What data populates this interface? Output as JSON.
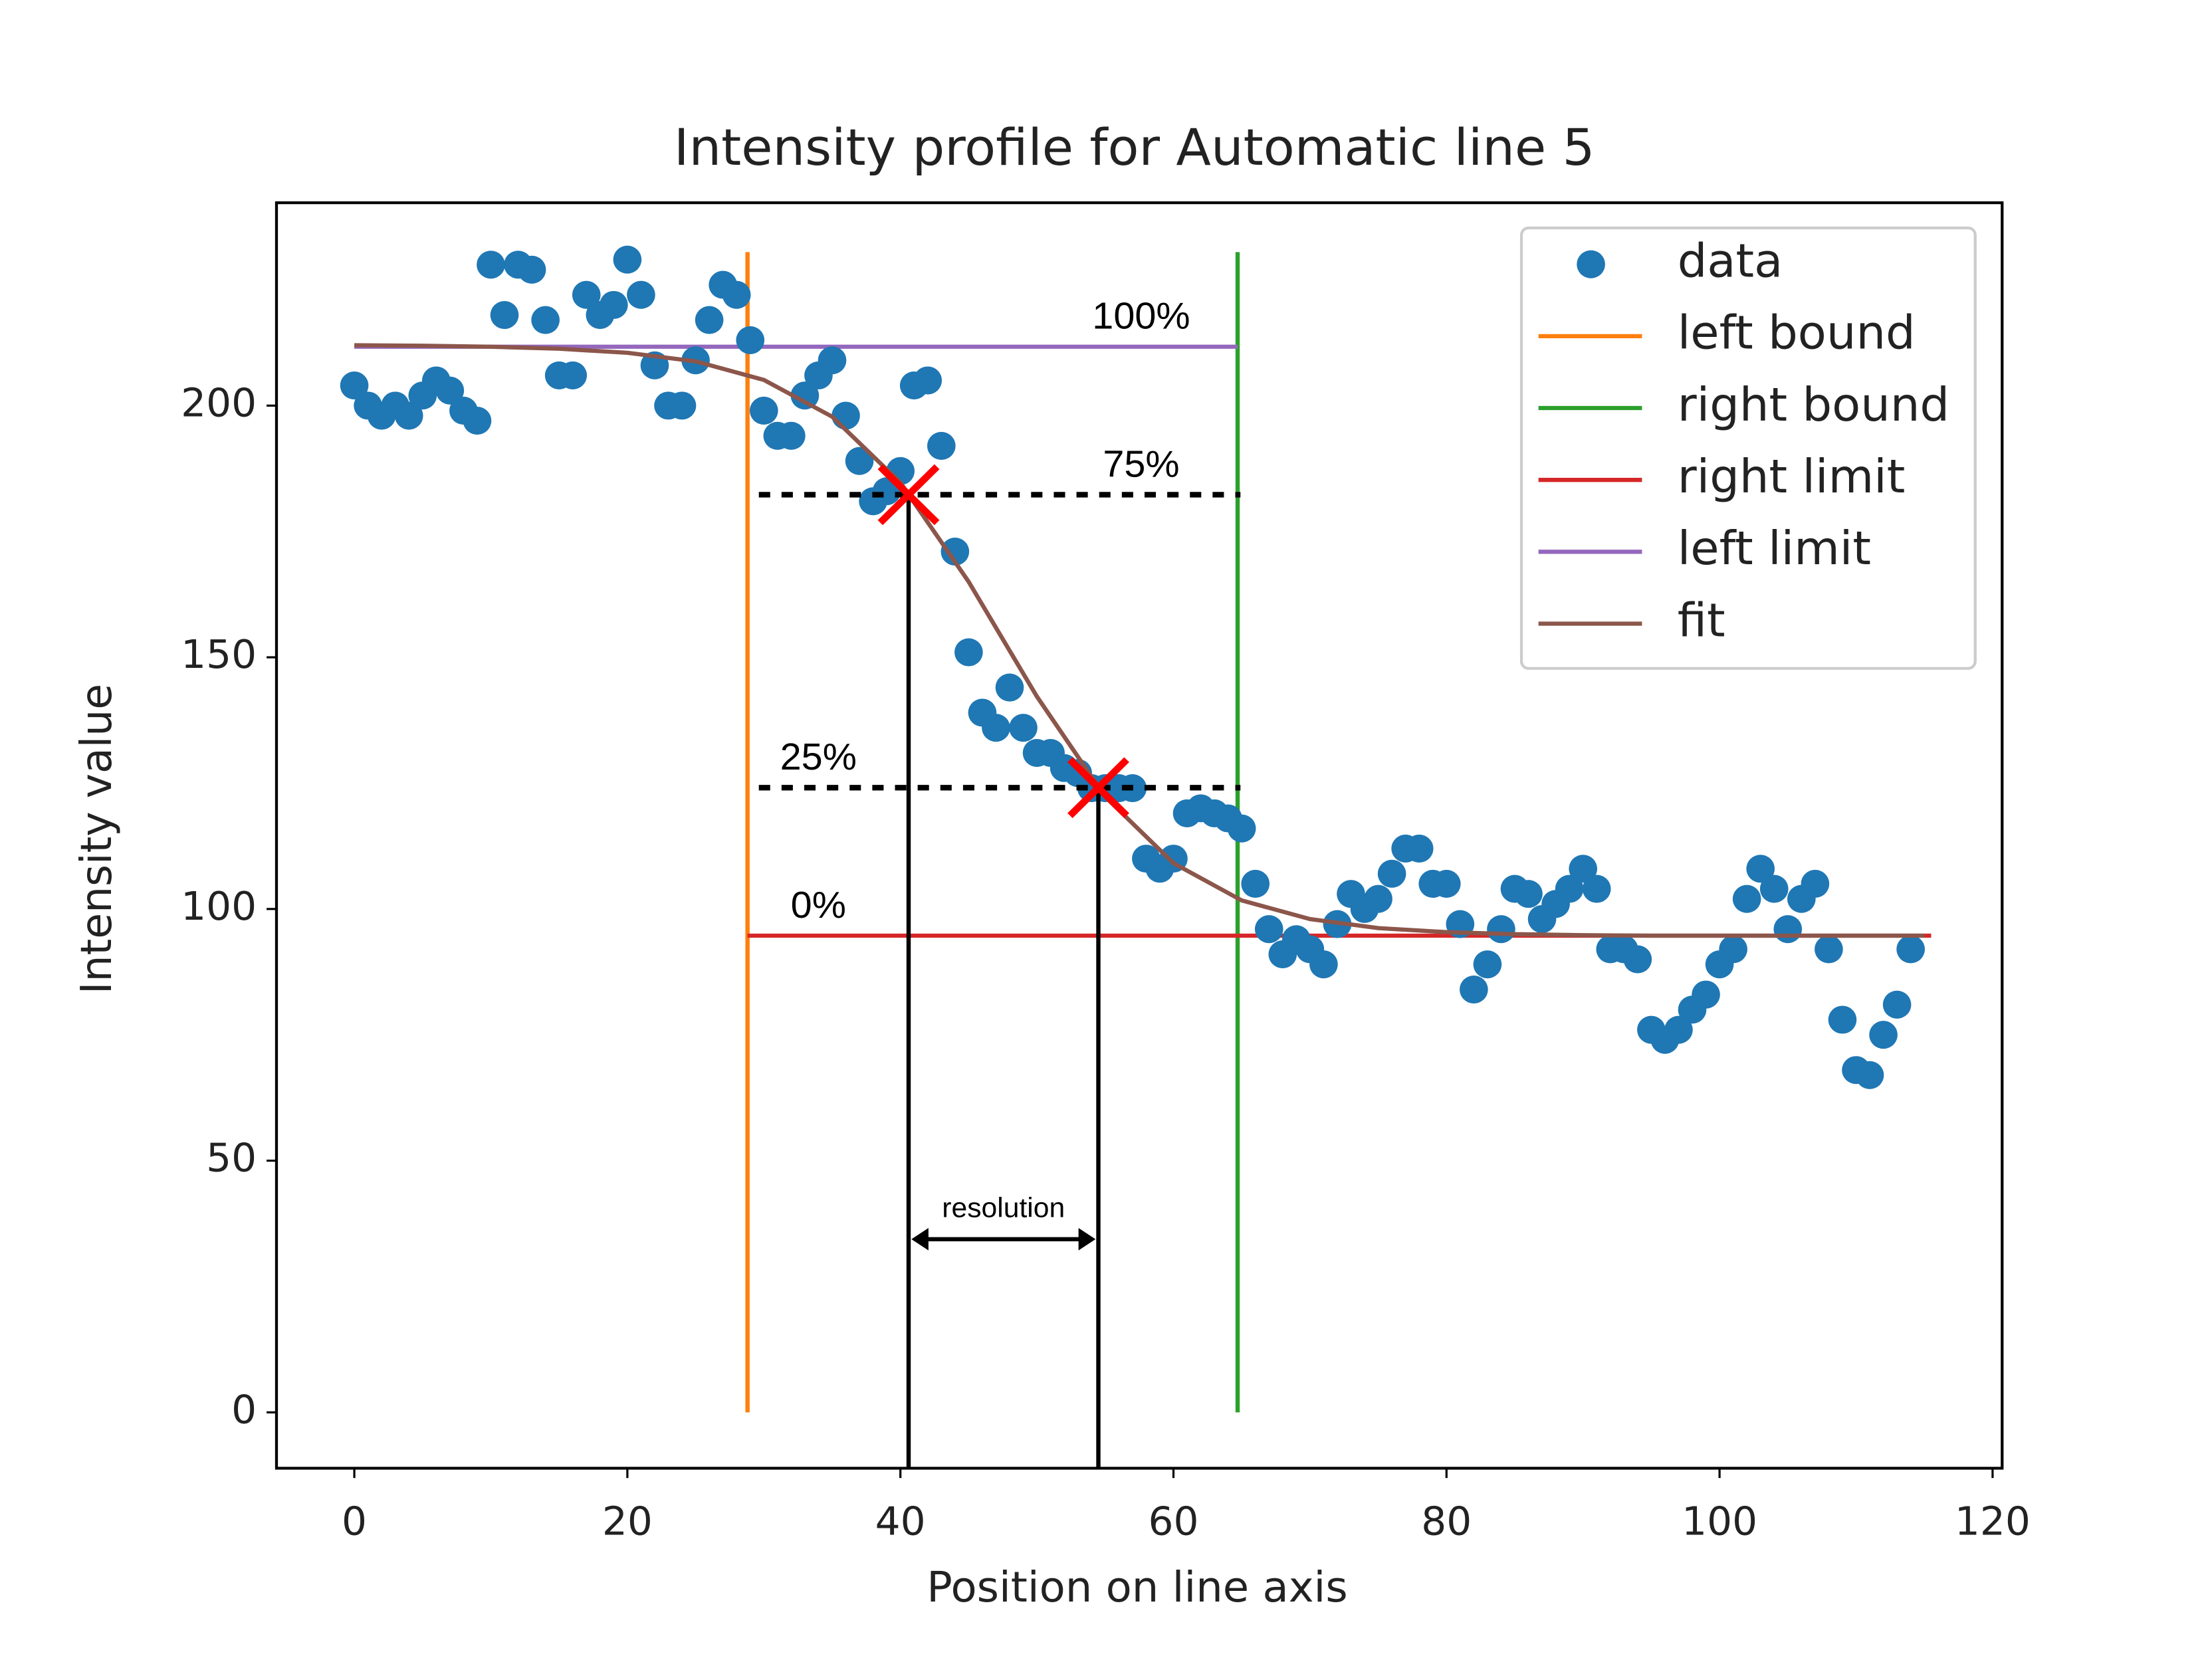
{
  "chart_data": {
    "type": "scatter",
    "title": "Intensity profile for Automatic line 5",
    "x_label": "Position on line axis",
    "y_label": "Intensity value",
    "xlim": [
      -5.7,
      120.7
    ],
    "ylim": [
      -11.1,
      240.3
    ],
    "xticks": [
      0,
      20,
      40,
      60,
      80,
      100,
      120
    ],
    "yticks": [
      0,
      50,
      100,
      150,
      200
    ],
    "grid": false,
    "legend": "upper right",
    "series": [
      {
        "name": "data",
        "color": "#1f77b4",
        "mode": "markers",
        "x": [
          0,
          1,
          2,
          3,
          4,
          5,
          6,
          7,
          8,
          9,
          10,
          11,
          12,
          13,
          14,
          15,
          16,
          17,
          18,
          19,
          20,
          21,
          22,
          23,
          24,
          25,
          26,
          27,
          28,
          29,
          30,
          31,
          32,
          33,
          34,
          35,
          36,
          37,
          38,
          39,
          40,
          41,
          42,
          43,
          44,
          45,
          46,
          47,
          48,
          49,
          50,
          51,
          52,
          53,
          54,
          55,
          56,
          57,
          58,
          59,
          60,
          61,
          62,
          63,
          64,
          65,
          66,
          67,
          68,
          69,
          70,
          71,
          72,
          73,
          74,
          75,
          76,
          77,
          78,
          79,
          80,
          81,
          82,
          83,
          84,
          85,
          86,
          87,
          88,
          89,
          90,
          91,
          92,
          93,
          94,
          95,
          96,
          97,
          98,
          99,
          100,
          101,
          102,
          103,
          104,
          105,
          106,
          107,
          108,
          109,
          110,
          111,
          112,
          113,
          114
        ],
        "values": [
          204,
          200,
          198,
          200,
          198,
          202,
          205,
          203,
          199,
          197,
          228,
          218,
          228,
          227,
          217,
          206,
          206,
          222,
          218,
          220,
          229,
          222,
          208,
          200,
          200,
          209,
          217,
          224,
          222,
          213,
          199,
          194,
          194,
          202,
          206,
          209,
          198,
          189,
          181,
          183,
          187,
          204,
          205,
          192,
          171,
          151,
          139,
          136,
          144,
          136,
          131,
          131,
          128,
          127,
          124,
          124,
          124,
          124,
          110,
          108,
          110,
          119,
          120,
          119,
          118,
          116,
          105,
          96,
          91,
          94,
          92,
          89,
          97,
          103,
          100,
          102,
          107,
          112,
          112,
          105,
          105,
          97,
          84,
          89,
          96,
          104,
          103,
          98,
          101,
          104,
          108,
          104,
          92,
          92,
          90,
          76,
          74,
          76,
          80,
          83,
          89,
          92,
          102,
          108,
          104,
          96,
          102,
          105,
          92,
          78,
          68,
          67,
          75,
          81,
          92
        ]
      },
      {
        "name": "left bound",
        "color": "#ff7f0e",
        "mode": "lines",
        "x": [
          28.8,
          28.8
        ],
        "values": [
          0,
          230.5
        ]
      },
      {
        "name": "right bound",
        "color": "#2ca02c",
        "mode": "lines",
        "x": [
          64.7,
          64.7
        ],
        "values": [
          0,
          230.5
        ]
      },
      {
        "name": "right limit",
        "color": "#d62728",
        "mode": "lines",
        "x": [
          28.8,
          115.5
        ],
        "values": [
          94.7,
          94.7
        ]
      },
      {
        "name": "left limit",
        "color": "#9467bd",
        "mode": "lines",
        "x": [
          0,
          64.7
        ],
        "values": [
          211.7,
          211.7
        ]
      },
      {
        "name": "fit",
        "color": "#8c564b",
        "mode": "lines",
        "x": [
          0,
          5,
          10,
          15,
          20,
          25,
          30,
          35,
          40,
          45,
          50,
          55,
          60,
          65,
          70,
          75,
          80,
          85,
          90,
          95,
          100,
          105,
          110,
          115
        ],
        "values": [
          212.0,
          211.9,
          211.7,
          211.3,
          210.5,
          208.8,
          205.1,
          197.8,
          184.7,
          165.0,
          142.2,
          122.3,
          109.1,
          101.7,
          98.0,
          96.2,
          95.4,
          95.0,
          94.8,
          94.7,
          94.7,
          94.7,
          94.7,
          94.7
        ]
      }
    ],
    "levels": [
      {
        "label": "100%",
        "value": 211.7,
        "dashed": false,
        "side": "right"
      },
      {
        "label": "75%",
        "value": 182.3,
        "dashed": true,
        "side": "right"
      },
      {
        "label": "25%",
        "value": 124.1,
        "dashed": true,
        "side": "left"
      },
      {
        "label": "0%",
        "value": 94.7,
        "dashed": false,
        "side": "left"
      }
    ],
    "points": [
      {
        "x": 40.6,
        "y": 182.3
      },
      {
        "x": 54.5,
        "y": 124.1
      }
    ],
    "resolution": {
      "label": "resolution",
      "y": 34.4
    }
  }
}
